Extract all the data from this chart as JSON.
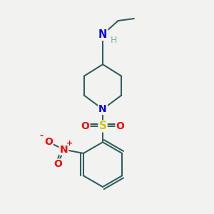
{
  "bg_color": "#f2f2f0",
  "bond_color": "#2f6060",
  "bond_lw": 1.5,
  "atom_colors": {
    "N_blue": "#0000ee",
    "N_pip": "#0000ee",
    "S": "#cccc00",
    "O_red": "#ff0000",
    "H_gray": "#80b0b0",
    "C": "#2f6060"
  },
  "figsize": [
    3.0,
    3.0
  ],
  "dpi": 100,
  "xlim": [
    0,
    10
  ],
  "ylim": [
    0,
    10
  ]
}
